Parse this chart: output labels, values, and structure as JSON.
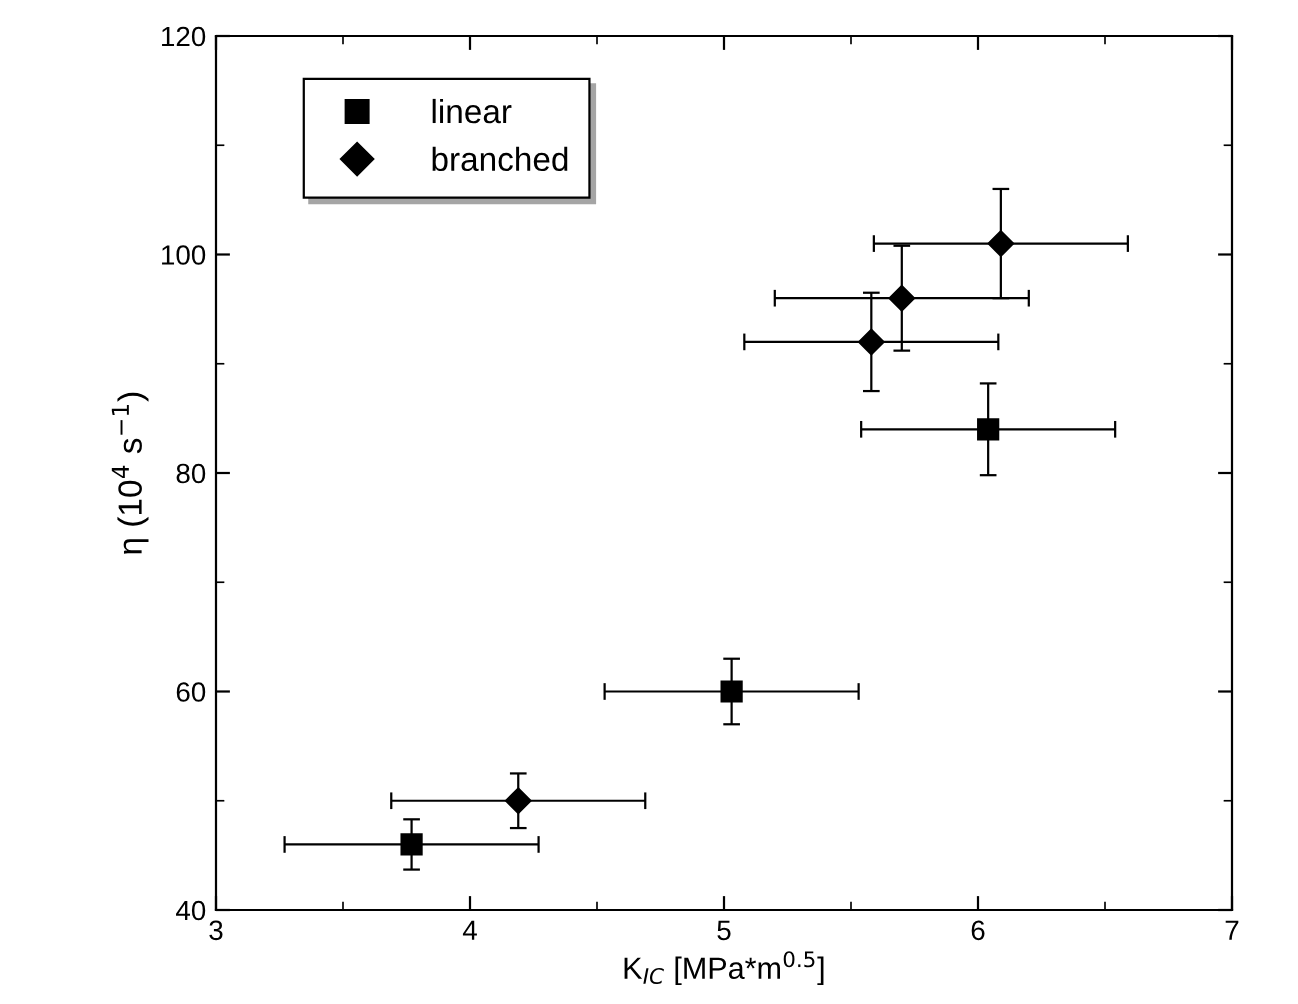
{
  "chart_data": {
    "type": "scatter",
    "xlabel": "K$_{IC}$ [MPa*m$^{0.5}$]",
    "ylabel": "η (10$^{4}$ s$^{−1}$)",
    "xlim": [
      3,
      7
    ],
    "xticks": [
      3,
      4,
      5,
      6,
      7
    ],
    "ylim": [
      40,
      120
    ],
    "yticks": [
      40,
      60,
      80,
      100,
      120
    ],
    "grid": false,
    "legend": "top left",
    "series": [
      {
        "name": "linear",
        "color": "#000000",
        "marker": "square",
        "x": [
          3.77,
          5.03,
          6.04
        ],
        "values": [
          46,
          60,
          84
        ],
        "errors": [
          2.3,
          3,
          4.2
        ],
        "xerrors": [
          0.5,
          0.5,
          0.5
        ]
      },
      {
        "name": "branched",
        "color": "#000000",
        "marker": "diamond",
        "x": [
          4.19,
          5.58,
          5.7,
          6.09
        ],
        "values": [
          50,
          92,
          96,
          101
        ],
        "errors": [
          2.5,
          4.5,
          4.8,
          5
        ],
        "xerrors": [
          0.5,
          0.5,
          0.5,
          0.5
        ]
      }
    ]
  }
}
